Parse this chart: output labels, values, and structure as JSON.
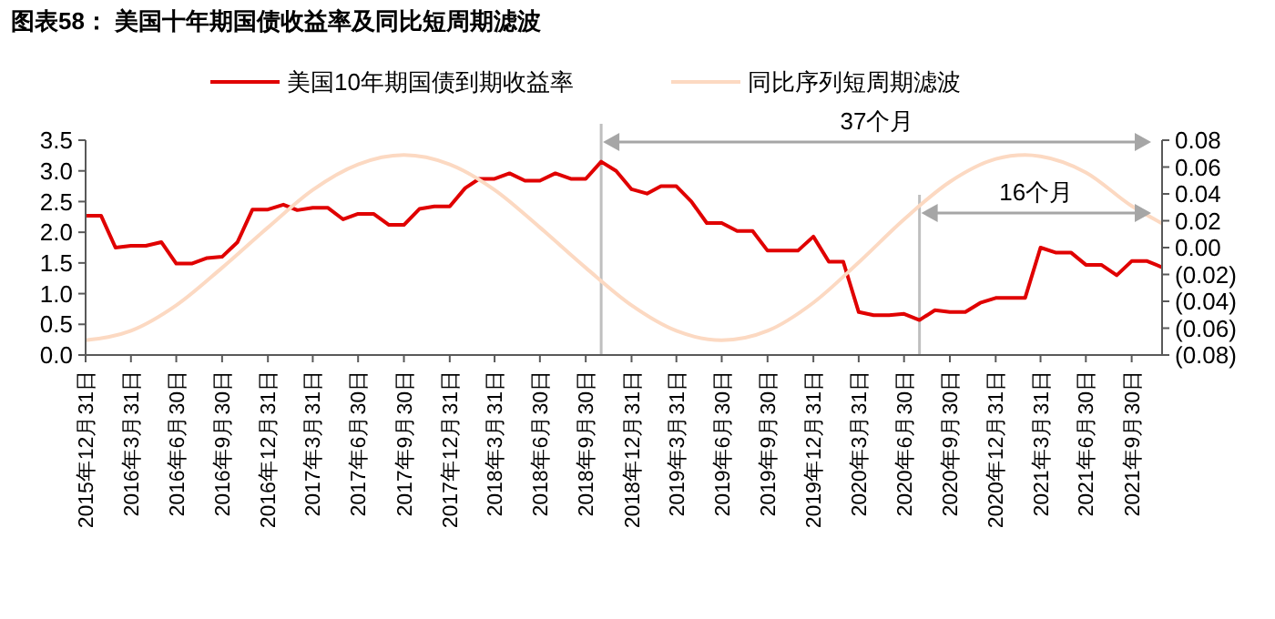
{
  "chart_data": {
    "type": "line",
    "title": "图表58：  美国十年期国债收益率及同比短周期滤波",
    "xlim": [
      "2015-12-31",
      "2021-11-30"
    ],
    "xticks": [
      {
        "value": "2015-12-31",
        "label": "2015年12月31日"
      },
      {
        "value": "2016-03-31",
        "label": "2016年3月31日"
      },
      {
        "value": "2016-06-30",
        "label": "2016年6月30日"
      },
      {
        "value": "2016-09-30",
        "label": "2016年9月30日"
      },
      {
        "value": "2016-12-31",
        "label": "2016年12月31日"
      },
      {
        "value": "2017-03-31",
        "label": "2017年3月31日"
      },
      {
        "value": "2017-06-30",
        "label": "2017年6月30日"
      },
      {
        "value": "2017-09-30",
        "label": "2017年9月30日"
      },
      {
        "value": "2017-12-31",
        "label": "2017年12月31日"
      },
      {
        "value": "2018-03-31",
        "label": "2018年3月31日"
      },
      {
        "value": "2018-06-30",
        "label": "2018年6月30日"
      },
      {
        "value": "2018-09-30",
        "label": "2018年9月30日"
      },
      {
        "value": "2018-12-31",
        "label": "2018年12月31日"
      },
      {
        "value": "2019-03-31",
        "label": "2019年3月31日"
      },
      {
        "value": "2019-06-30",
        "label": "2019年6月30日"
      },
      {
        "value": "2019-09-30",
        "label": "2019年9月30日"
      },
      {
        "value": "2019-12-31",
        "label": "2019年12月31日"
      },
      {
        "value": "2020-03-31",
        "label": "2020年3月31日"
      },
      {
        "value": "2020-06-30",
        "label": "2020年6月30日"
      },
      {
        "value": "2020-09-30",
        "label": "2020年9月30日"
      },
      {
        "value": "2020-12-31",
        "label": "2020年12月31日"
      },
      {
        "value": "2021-03-31",
        "label": "2021年3月31日"
      },
      {
        "value": "2021-06-30",
        "label": "2021年6月30日"
      },
      {
        "value": "2021-09-30",
        "label": "2021年9月30日"
      }
    ],
    "ylim": [
      0,
      3.5
    ],
    "yticks": [
      {
        "value": 0,
        "label": "0.0"
      },
      0.5,
      {
        "value": 1,
        "label": "1.0"
      },
      1.5,
      {
        "value": 2,
        "label": "2.0"
      },
      2.5,
      {
        "value": 3,
        "label": "3.0"
      },
      3.5
    ],
    "y2lim": [
      -0.08,
      0.08
    ],
    "y2ticks": [
      {
        "value": 0.08,
        "label": "0.08"
      },
      {
        "value": 0.06,
        "label": "0.06"
      },
      {
        "value": 0.04,
        "label": "0.04"
      },
      {
        "value": 0.02,
        "label": "0.02"
      },
      {
        "value": 0,
        "label": "0.00"
      },
      {
        "value": -0.02,
        "label": "(0.02)"
      },
      {
        "value": -0.04,
        "label": "(0.04)"
      },
      {
        "value": -0.06,
        "label": "(0.06)"
      },
      {
        "value": -0.08,
        "label": "(0.08)"
      }
    ],
    "grid": false,
    "legend": "top",
    "series": [
      {
        "name": "美国10年期国债到期收益率",
        "color": "#e00000",
        "x": [
          "2015-12-31",
          "2016-01-31",
          "2016-02-29",
          "2016-03-31",
          "2016-04-30",
          "2016-05-31",
          "2016-06-30",
          "2016-07-31",
          "2016-08-31",
          "2016-09-30",
          "2016-10-31",
          "2016-11-30",
          "2016-12-31",
          "2017-01-31",
          "2017-02-28",
          "2017-03-31",
          "2017-04-30",
          "2017-05-31",
          "2017-06-30",
          "2017-07-31",
          "2017-08-31",
          "2017-09-30",
          "2017-10-31",
          "2017-11-30",
          "2017-12-31",
          "2018-01-31",
          "2018-02-28",
          "2018-03-31",
          "2018-04-30",
          "2018-05-31",
          "2018-06-30",
          "2018-07-31",
          "2018-08-31",
          "2018-09-30",
          "2018-10-31",
          "2018-11-30",
          "2018-12-31",
          "2019-01-31",
          "2019-02-28",
          "2019-03-31",
          "2019-04-30",
          "2019-05-31",
          "2019-06-30",
          "2019-07-31",
          "2019-08-31",
          "2019-09-30",
          "2019-10-31",
          "2019-11-30",
          "2019-12-31",
          "2020-01-31",
          "2020-02-29",
          "2020-03-31",
          "2020-04-30",
          "2020-05-31",
          "2020-06-30",
          "2020-07-31",
          "2020-08-31",
          "2020-09-30",
          "2020-10-31",
          "2020-11-30",
          "2020-12-31",
          "2021-01-31",
          "2021-02-28",
          "2021-03-31",
          "2021-04-30",
          "2021-05-31",
          "2021-06-30",
          "2021-07-31",
          "2021-08-31",
          "2021-09-30",
          "2021-10-31",
          "2021-11-30"
        ],
        "values": [
          2.27,
          2.27,
          1.75,
          1.78,
          1.78,
          1.84,
          1.49,
          1.49,
          1.58,
          1.6,
          1.84,
          2.37,
          2.37,
          2.45,
          2.36,
          2.4,
          2.4,
          2.21,
          2.3,
          2.3,
          2.12,
          2.12,
          2.38,
          2.42,
          2.42,
          2.72,
          2.87,
          2.87,
          2.96,
          2.84,
          2.84,
          2.96,
          2.87,
          2.87,
          3.15,
          3.0,
          2.7,
          2.63,
          2.75,
          2.75,
          2.5,
          2.15,
          2.15,
          2.02,
          2.02,
          1.7,
          1.7,
          1.7,
          1.93,
          1.52,
          1.52,
          0.7,
          0.65,
          0.65,
          0.67,
          0.57,
          0.73,
          0.7,
          0.7,
          0.85,
          0.93,
          0.93,
          0.93,
          1.75,
          1.67,
          1.67,
          1.47,
          1.47,
          1.3,
          1.53,
          1.53,
          1.43
        ]
      },
      {
        "name": "同比序列短周期滤波",
        "color": "#fcd9c2",
        "axis": "y2",
        "x": [
          "2015-12-31",
          "2016-03-31",
          "2016-06-30",
          "2016-09-30",
          "2016-12-31",
          "2017-03-31",
          "2017-06-30",
          "2017-09-30",
          "2017-12-31",
          "2018-03-31",
          "2018-06-30",
          "2018-09-30",
          "2018-12-31",
          "2019-03-31",
          "2019-06-30",
          "2019-09-30",
          "2019-12-31",
          "2020-03-31",
          "2020-06-30",
          "2020-09-30",
          "2020-12-31",
          "2021-02-28",
          "2021-03-31",
          "2021-06-30",
          "2021-09-30",
          "2021-11-30"
        ],
        "values": [
          -0.069,
          -0.062,
          -0.043,
          -0.015,
          0.015,
          0.043,
          0.062,
          0.069,
          0.062,
          0.043,
          0.015,
          -0.015,
          -0.043,
          -0.062,
          -0.069,
          -0.062,
          -0.041,
          -0.011,
          0.021,
          0.049,
          0.066,
          0.069,
          0.068,
          0.056,
          0.031,
          0.018
        ]
      }
    ],
    "ref_lines": [
      {
        "axis": "x",
        "value": "2018-10-31",
        "color": "#bfbfbf"
      },
      {
        "axis": "x",
        "value": "2020-07-31",
        "color": "#bfbfbf"
      }
    ],
    "annotations": [
      "37个月",
      "16个月"
    ]
  }
}
